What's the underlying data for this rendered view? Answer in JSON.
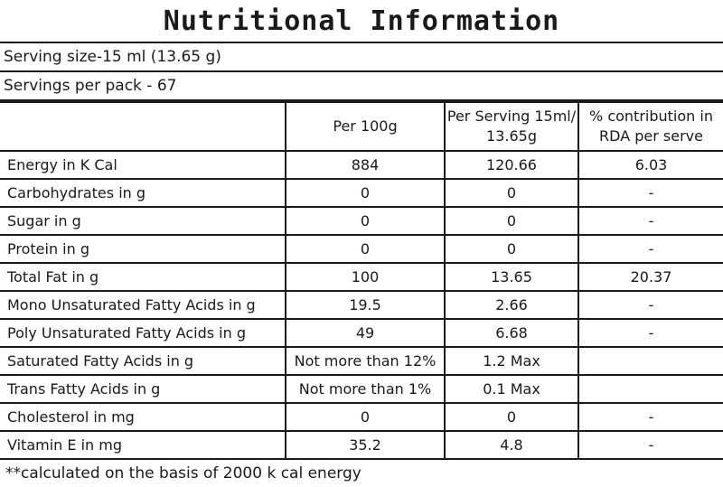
{
  "title": "Nutritional Information",
  "serving_size": "Serving size-15 ml (13.65 g)",
  "servings_per_pack": "Servings per pack - 67",
  "columns": {
    "blank": "",
    "per_100g": "Per 100g",
    "per_serving": "Per Serving 15ml/ 13.65g",
    "rda": "% contribution in RDA per serve"
  },
  "rows": [
    {
      "label": "Energy in K Cal",
      "per_100g": "884",
      "per_serving": "120.66",
      "rda": "6.03"
    },
    {
      "label": "Carbohydrates in g",
      "per_100g": "0",
      "per_serving": "0",
      "rda": "-"
    },
    {
      "label": "Sugar in g",
      "per_100g": "0",
      "per_serving": "0",
      "rda": "-"
    },
    {
      "label": "Protein in g",
      "per_100g": "0",
      "per_serving": "0",
      "rda": "-"
    },
    {
      "label": "Total Fat in g",
      "per_100g": "100",
      "per_serving": "13.65",
      "rda": "20.37"
    },
    {
      "label": "Mono Unsaturated Fatty Acids in g",
      "per_100g": "19.5",
      "per_serving": "2.66",
      "rda": "-"
    },
    {
      "label": "Poly Unsaturated Fatty Acids in g",
      "per_100g": "49",
      "per_serving": "6.68",
      "rda": "-"
    },
    {
      "label": "Saturated Fatty Acids in g",
      "per_100g": "Not more than 12%",
      "per_serving": "1.2 Max",
      "rda": ""
    },
    {
      "label": "Trans Fatty Acids in g",
      "per_100g": "Not more than 1%",
      "per_serving": "0.1 Max",
      "rda": ""
    },
    {
      "label": "Cholesterol in mg",
      "per_100g": "0",
      "per_serving": "0",
      "rda": "-"
    },
    {
      "label": "Vitamin E in mg",
      "per_100g": "35.2",
      "per_serving": "4.8",
      "rda": "-"
    }
  ],
  "footnote": "**calculated on the basis of 2000 k cal energy"
}
